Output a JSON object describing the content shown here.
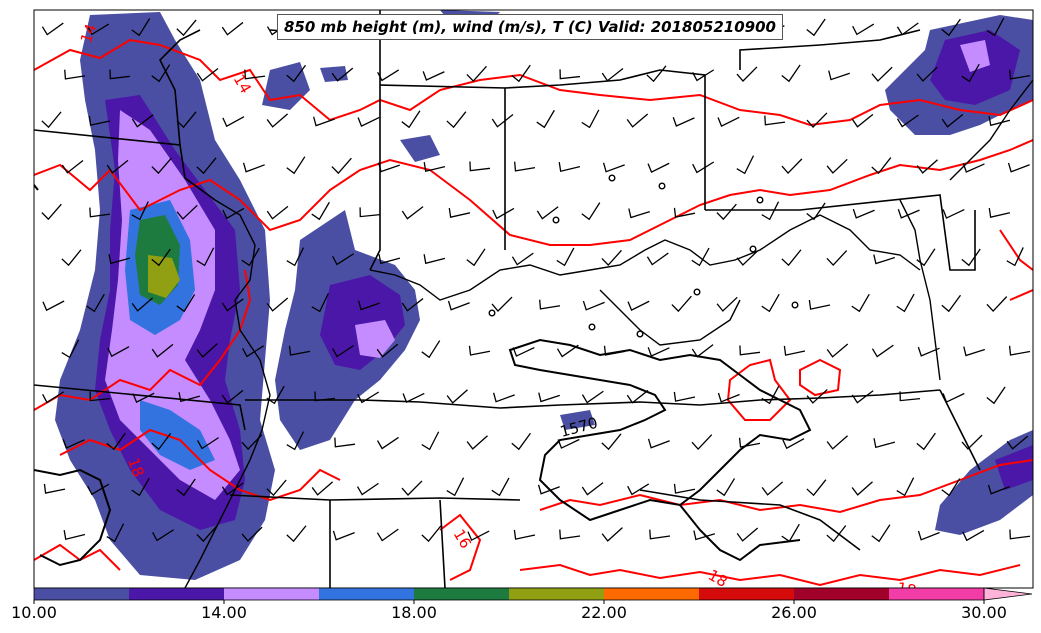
{
  "title": "850 mb height (m), wind (m/s), T (C) Valid: 201805210900",
  "colorbar": {
    "ticks": [
      "10.00",
      "14.00",
      "18.00",
      "22.00",
      "26.00",
      "30.00"
    ],
    "colors": [
      "#4a4fa3",
      "#4b17a8",
      "#c58cff",
      "#3273e0",
      "#1e7b3f",
      "#919f12",
      "#ff6a00",
      "#d50a0a",
      "#a0002a",
      "#f23ca6",
      "#ffb3d9"
    ]
  },
  "contour_labels": {
    "height": [
      "1570"
    ],
    "temperature": [
      "14",
      "14",
      "18",
      "16",
      "18",
      "18"
    ]
  },
  "colors": {
    "height_contour": "#000000",
    "temperature_contour": "#ff0000",
    "map_border": "#000000"
  }
}
